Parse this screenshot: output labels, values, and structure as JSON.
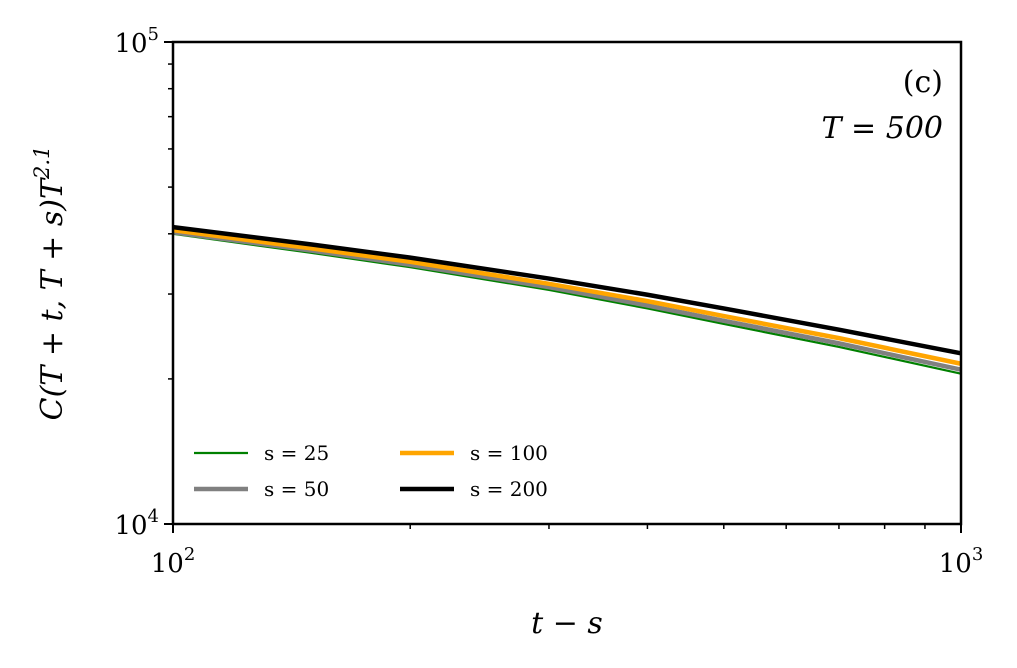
{
  "chart_data": {
    "type": "line",
    "title": "",
    "xlabel": "t − s",
    "ylabel": "C(T + t, T + s)T^2.1",
    "xscale": "log",
    "yscale": "log",
    "xlim": [
      100,
      1000
    ],
    "ylim": [
      10000,
      100000
    ],
    "x_ticks": [
      {
        "value": 100,
        "base": "10",
        "exp": "2"
      },
      {
        "value": 1000,
        "base": "10",
        "exp": "3"
      }
    ],
    "y_ticks": [
      {
        "value": 10000,
        "base": "10",
        "exp": "4"
      },
      {
        "value": 100000,
        "base": "10",
        "exp": "5"
      }
    ],
    "grid": false,
    "legend_position": "lower-left",
    "legend_columns": 2,
    "annotations": {
      "panel_label": "(c)",
      "param_text": "T = 500"
    },
    "x": [
      100,
      150,
      200,
      300,
      400,
      500,
      700,
      1000
    ],
    "series": [
      {
        "name": "s = 25",
        "legend_var": "s",
        "legend_value": "25",
        "color": "#008000",
        "width": 2.2,
        "values": [
          40000,
          36500,
          34100,
          30600,
          28000,
          26000,
          23300,
          20500
        ]
      },
      {
        "name": "s = 50",
        "legend_var": "s",
        "legend_value": "50",
        "color": "#808080",
        "width": 4.5,
        "values": [
          40300,
          36900,
          34500,
          31000,
          28400,
          26400,
          23700,
          20900
        ]
      },
      {
        "name": "s = 100",
        "legend_var": "s",
        "legend_value": "100",
        "color": "#FFA500",
        "width": 4.5,
        "values": [
          40700,
          37300,
          35000,
          31500,
          29000,
          27000,
          24300,
          21500
        ]
      },
      {
        "name": "s = 200",
        "legend_var": "s",
        "legend_value": "200",
        "color": "#000000",
        "width": 4.5,
        "values": [
          41300,
          38000,
          35700,
          32300,
          29900,
          28000,
          25300,
          22600
        ]
      }
    ]
  }
}
